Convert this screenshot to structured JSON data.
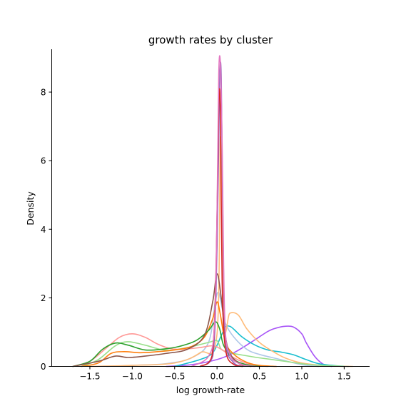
{
  "chart_data": {
    "type": "line",
    "title": "growth rates by cluster",
    "xlabel": "log growth-rate",
    "ylabel": "Density",
    "xlim": [
      -1.95,
      1.8
    ],
    "ylim": [
      0,
      9.25
    ],
    "xticks": [
      -1.5,
      -1.0,
      -0.5,
      0.0,
      0.5,
      1.0,
      1.5
    ],
    "xtick_labels": [
      "−1.5",
      "−1.0",
      "−0.5",
      "0.0",
      "0.5",
      "1.0",
      "1.5"
    ],
    "yticks": [
      0,
      2,
      4,
      6,
      8
    ],
    "ytick_labels": [
      "0",
      "2",
      "4",
      "6",
      "8"
    ],
    "grid": false,
    "legend": "none",
    "series": [
      {
        "color": "#a855f7",
        "x": [
          -0.6,
          -0.3,
          0.0,
          0.2,
          0.4,
          0.6,
          0.7,
          0.8,
          0.9,
          1.0,
          1.05,
          1.15,
          1.25,
          1.35
        ],
        "values": [
          0.0,
          0.05,
          0.2,
          0.4,
          0.7,
          1.02,
          1.12,
          1.17,
          1.15,
          0.95,
          0.7,
          0.3,
          0.07,
          0.0
        ]
      },
      {
        "color": "#17becf",
        "x": [
          -0.5,
          -0.2,
          -0.05,
          0.05,
          0.1,
          0.15,
          0.2,
          0.3,
          0.45,
          0.6,
          0.75,
          0.9,
          1.05,
          1.2,
          1.4,
          1.55
        ],
        "values": [
          0.0,
          0.2,
          0.4,
          0.9,
          1.15,
          1.17,
          1.08,
          0.85,
          0.62,
          0.48,
          0.42,
          0.34,
          0.2,
          0.08,
          0.02,
          0.0
        ]
      },
      {
        "color": "#aec7e8",
        "x": [
          -1.3,
          -1.0,
          -0.6,
          -0.3,
          -0.1,
          -0.02,
          0.02,
          0.06,
          0.1,
          0.2,
          0.35,
          0.5,
          0.75,
          1.0,
          1.2
        ],
        "values": [
          0.0,
          0.03,
          0.08,
          0.25,
          0.7,
          1.9,
          2.15,
          1.7,
          1.25,
          0.85,
          0.5,
          0.35,
          0.2,
          0.05,
          0.0
        ]
      },
      {
        "color": "#ffbb78",
        "x": [
          -1.5,
          -1.0,
          -0.5,
          -0.2,
          0.0,
          0.04,
          0.08,
          0.15,
          0.25,
          0.35,
          0.5,
          0.65,
          0.8,
          1.0,
          1.3,
          1.6
        ],
        "values": [
          0.0,
          0.03,
          0.1,
          0.4,
          0.95,
          6.7,
          1.3,
          1.55,
          1.5,
          1.1,
          0.7,
          0.45,
          0.25,
          0.1,
          0.02,
          0.0
        ]
      },
      {
        "color": "#98df8a",
        "x": [
          -1.6,
          -1.4,
          -1.2,
          -1.05,
          -0.85,
          -0.6,
          -0.35,
          -0.1,
          0.0,
          0.05,
          0.15,
          0.3,
          0.5,
          0.8,
          1.1,
          1.5
        ],
        "values": [
          0.0,
          0.2,
          0.6,
          0.72,
          0.62,
          0.47,
          0.55,
          0.7,
          0.75,
          0.5,
          0.4,
          0.33,
          0.25,
          0.15,
          0.05,
          0.0
        ]
      },
      {
        "color": "#ff9896",
        "x": [
          -1.7,
          -1.5,
          -1.3,
          -1.15,
          -1.0,
          -0.85,
          -0.7,
          -0.55,
          -0.4,
          -0.2,
          -0.05,
          0.05,
          0.2,
          0.4,
          0.6
        ],
        "values": [
          0.0,
          0.15,
          0.55,
          0.85,
          0.95,
          0.85,
          0.65,
          0.52,
          0.5,
          0.55,
          0.6,
          0.5,
          0.25,
          0.05,
          0.0
        ]
      },
      {
        "color": "#ff7f0e",
        "x": [
          -1.6,
          -1.4,
          -1.25,
          -1.1,
          -0.9,
          -0.7,
          -0.5,
          -0.3,
          -0.15,
          -0.05,
          0.0,
          0.04,
          0.1,
          0.2,
          0.35,
          0.5,
          0.7
        ],
        "values": [
          0.0,
          0.1,
          0.38,
          0.43,
          0.4,
          0.43,
          0.48,
          0.58,
          0.85,
          1.4,
          1.88,
          1.5,
          0.7,
          0.35,
          0.12,
          0.03,
          0.0
        ]
      },
      {
        "color": "#2ca02c",
        "x": [
          -1.7,
          -1.5,
          -1.35,
          -1.2,
          -1.05,
          -0.85,
          -0.65,
          -0.45,
          -0.25,
          -0.1,
          -0.02,
          0.03,
          0.08,
          0.2,
          0.35,
          0.5
        ],
        "values": [
          0.0,
          0.15,
          0.5,
          0.68,
          0.62,
          0.48,
          0.5,
          0.58,
          0.75,
          1.05,
          1.3,
          1.1,
          0.6,
          0.2,
          0.05,
          0.0
        ]
      },
      {
        "color": "#8c564b",
        "x": [
          -1.7,
          -1.4,
          -1.2,
          -1.05,
          -0.85,
          -0.6,
          -0.35,
          -0.15,
          -0.05,
          0.0,
          0.05,
          0.12,
          0.25,
          0.4
        ],
        "values": [
          0.0,
          0.15,
          0.3,
          0.26,
          0.3,
          0.38,
          0.5,
          0.9,
          1.9,
          2.7,
          2.0,
          0.6,
          0.1,
          0.0
        ]
      },
      {
        "color": "#9467bd",
        "x": [
          -0.2,
          -0.05,
          0.0,
          0.03,
          0.05,
          0.07,
          0.1,
          0.2,
          0.3
        ],
        "values": [
          0.0,
          0.3,
          3.5,
          8.2,
          8.4,
          4.0,
          0.8,
          0.1,
          0.0
        ]
      },
      {
        "color": "#d62728",
        "x": [
          -0.2,
          -0.06,
          -0.01,
          0.02,
          0.04,
          0.06,
          0.1,
          0.2,
          0.3
        ],
        "values": [
          0.0,
          0.3,
          3.0,
          7.6,
          7.4,
          2.5,
          0.5,
          0.05,
          0.0
        ]
      },
      {
        "color": "#e377c2",
        "x": [
          -0.3,
          -0.1,
          -0.03,
          0.0,
          0.02,
          0.04,
          0.06,
          0.09,
          0.15,
          0.3,
          0.45
        ],
        "values": [
          0.0,
          0.3,
          1.2,
          4.5,
          8.5,
          8.82,
          6.5,
          1.5,
          0.35,
          0.05,
          0.0
        ]
      }
    ]
  }
}
